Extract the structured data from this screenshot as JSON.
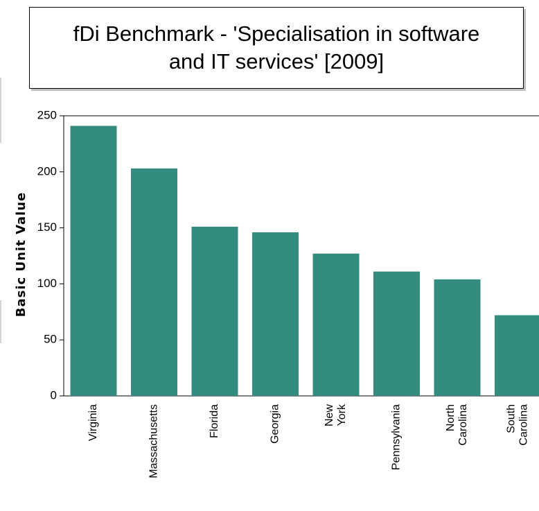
{
  "chart_data": {
    "type": "bar",
    "title": "fDi Benchmark - 'Specialisation in software\nand IT services' [2009]",
    "xlabel": "",
    "ylabel": "Basic Unit Value",
    "categories": [
      "Virginia",
      "Massachusetts",
      "Florida",
      "Georgia",
      "New\nYork",
      "Pennsylvania",
      "North\nCarolina",
      "South\nCarolina"
    ],
    "values": [
      241,
      203,
      151,
      146,
      127,
      111,
      104,
      72
    ],
    "ylim": [
      0,
      250
    ],
    "yticks": [
      0,
      50,
      100,
      150,
      200,
      250
    ],
    "grid": false,
    "bar_color": "#338c7e"
  }
}
